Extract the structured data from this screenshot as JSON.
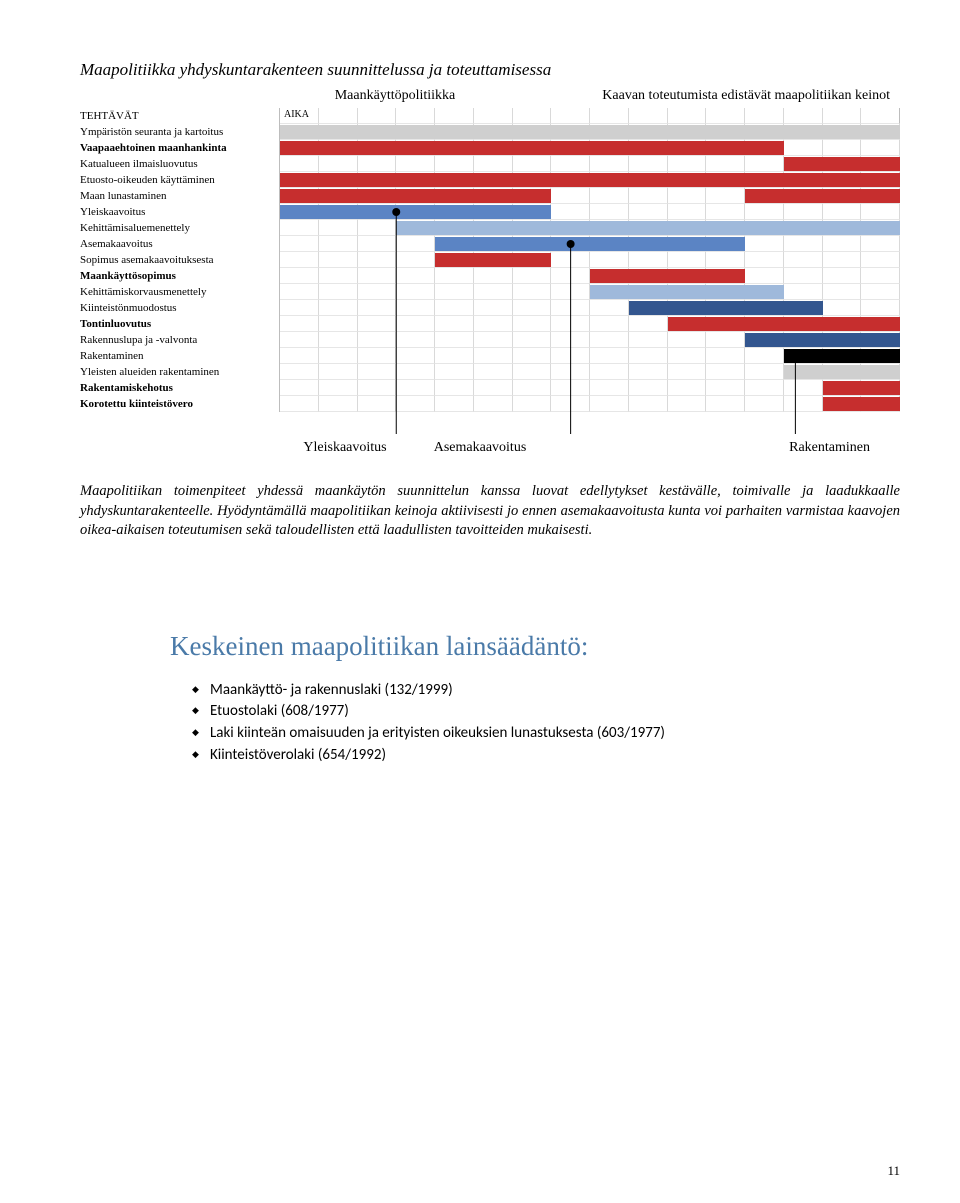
{
  "chart": {
    "title": "Maapolitiikka yhdyskuntarakenteen suunnittelussa ja toteuttamisessa",
    "top_label_a": "Maankäyttöpolitiikka",
    "top_label_b": "Kaavan toteutumista edistävät maapolitiikan keinot",
    "header_left": "TEHTÄVÄT",
    "header_right": "AIKA",
    "num_cols": 16,
    "colors": {
      "red": "#c62e2e",
      "blue": "#5b84c4",
      "ltblue": "#9fb9db",
      "grey": "#cfcfcf",
      "dkblue": "#33568f",
      "black": "#000000"
    },
    "rows": [
      {
        "label": "Ympäristön seuranta ja kartoitus",
        "bars": [
          {
            "start": 0,
            "end": 16,
            "color": "grey"
          }
        ]
      },
      {
        "label": "Vaapaaehtoinen maanhankinta",
        "bars": [
          {
            "start": 0,
            "end": 13,
            "color": "red"
          }
        ]
      },
      {
        "label": "Katualueen ilmaisluovutus",
        "bars": [
          {
            "start": 13,
            "end": 16,
            "color": "red"
          }
        ]
      },
      {
        "label": "Etuosto-oikeuden käyttäminen",
        "bars": [
          {
            "start": 0,
            "end": 16,
            "color": "red"
          }
        ]
      },
      {
        "label": "Maan lunastaminen",
        "bars": [
          {
            "start": 0,
            "end": 7,
            "color": "red"
          },
          {
            "start": 12,
            "end": 16,
            "color": "red"
          }
        ]
      },
      {
        "label": "Yleiskaavoitus",
        "bars": [
          {
            "start": 0,
            "end": 7,
            "color": "blue"
          }
        ]
      },
      {
        "label": "Kehittämisaluemenettely",
        "bars": [
          {
            "start": 3,
            "end": 16,
            "color": "ltblue"
          }
        ]
      },
      {
        "label": "Asemakaavoitus",
        "bars": [
          {
            "start": 4,
            "end": 12,
            "color": "blue"
          }
        ]
      },
      {
        "label": "Sopimus asemakaavoituksesta",
        "bars": [
          {
            "start": 4,
            "end": 7,
            "color": "red"
          }
        ]
      },
      {
        "label": "Maankäyttösopimus",
        "bars": [
          {
            "start": 8,
            "end": 12,
            "color": "red"
          }
        ]
      },
      {
        "label": "Kehittämiskorvausmenettely",
        "bars": [
          {
            "start": 8,
            "end": 13,
            "color": "ltblue"
          }
        ]
      },
      {
        "label": "Kiinteistönmuodostus",
        "bars": [
          {
            "start": 9,
            "end": 14,
            "color": "dkblue"
          }
        ]
      },
      {
        "label": "Tontinluovutus",
        "bars": [
          {
            "start": 10,
            "end": 16,
            "color": "red"
          }
        ]
      },
      {
        "label": "Rakennuslupa ja -valvonta",
        "bars": [
          {
            "start": 12,
            "end": 16,
            "color": "dkblue"
          }
        ]
      },
      {
        "label": "Rakentaminen",
        "bars": [
          {
            "start": 13,
            "end": 16,
            "color": "black"
          }
        ]
      },
      {
        "label": "Yleisten alueiden rakentaminen",
        "bars": [
          {
            "start": 13,
            "end": 16,
            "color": "grey"
          }
        ]
      },
      {
        "label": "Rakentamiskehotus",
        "bars": [
          {
            "start": 14,
            "end": 16,
            "color": "red"
          }
        ]
      },
      {
        "label": "Korotettu kiinteistövero",
        "bars": [
          {
            "start": 14,
            "end": 16,
            "color": "red"
          }
        ]
      }
    ],
    "bottom_labels": {
      "b1": "Yleiskaavoitus",
      "b2": "Asemakaavoitus",
      "b3": "Rakentaminen"
    },
    "connectors": [
      {
        "dot_row": 5,
        "dot_col": 3,
        "line_down_to_bottom": true
      },
      {
        "dot_row": 7,
        "dot_col": 7,
        "line_down_to_bottom": true
      },
      {
        "dot_row": 14,
        "dot_col": 13.5,
        "line_down_to_bottom": true
      },
      {
        "dot_row": -1,
        "dot_col": 12.8,
        "line_up_to_top": true
      }
    ]
  },
  "caption": "Maapolitiikan toimenpiteet yhdessä maankäytön suunnittelun kanssa luovat edellytykset kestävälle, toimivalle ja laadukkaalle yhdyskuntarakenteelle. Hyödyntämällä maapolitiikan keinoja aktiivisesti jo ennen asemakaavoitusta kunta voi parhaiten varmistaa kaavojen oikea-aikaisen toteutumisen sekä taloudellisten että laadullisten tavoitteiden mukaisesti.",
  "legislation": {
    "title": "Keskeinen maapolitiikan lainsäädäntö:",
    "items": [
      "Maankäyttö- ja rakennuslaki (132/1999)",
      "Etuostolaki  (608/1977)",
      "Laki kiinteän omaisuuden ja erityisten oikeuksien lunastuksesta (603/1977)",
      "Kiinteistöverolaki (654/1992)"
    ]
  },
  "page_number": "11"
}
